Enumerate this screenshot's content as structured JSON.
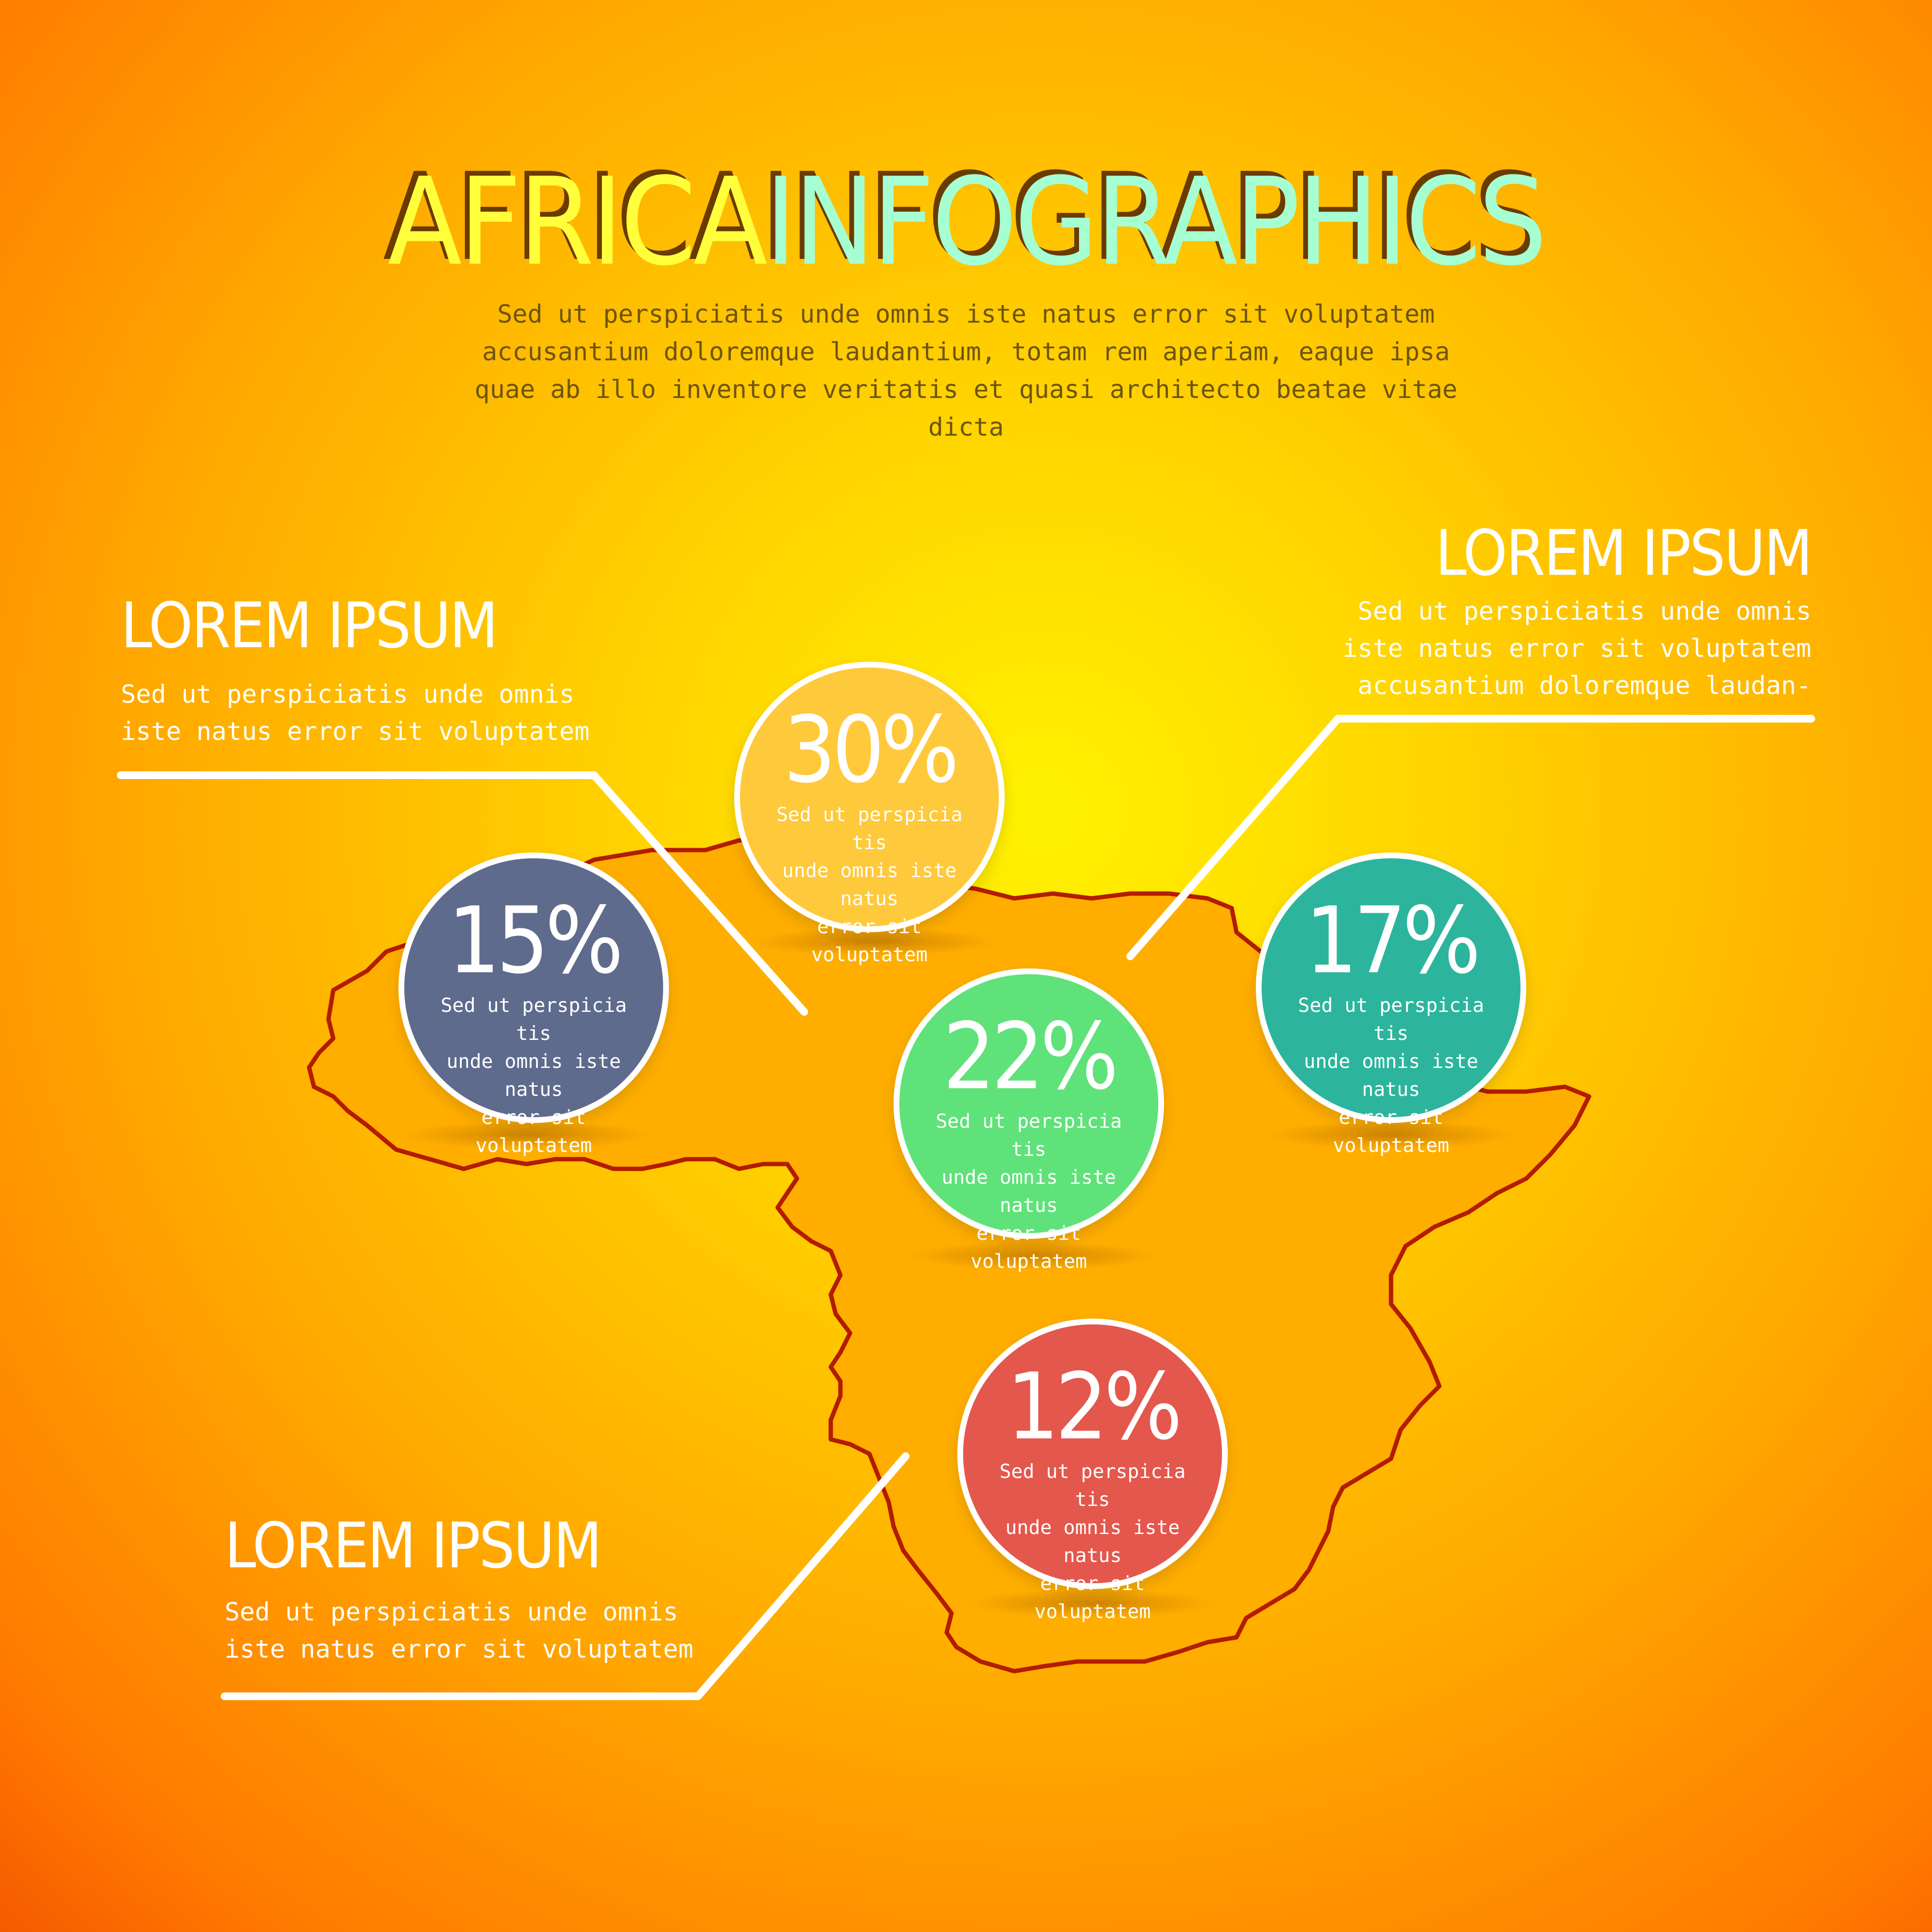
{
  "title": {
    "part1": "AFRICA",
    "part2": "INFOGRAPHICS"
  },
  "subtitle": "Sed ut perspiciatis unde omnis iste natus error sit voluptatem\naccusantium doloremque laudantium, totam rem aperiam, eaque ipsa\nquae ab illo inventore veritatis et quasi architecto beatae vitae dicta",
  "callouts": {
    "top_left": {
      "heading": "LOREM IPSUM",
      "text": "Sed ut perspiciatis unde omnis\niste natus error sit voluptatem"
    },
    "top_right": {
      "heading": "LOREM IPSUM",
      "text": "Sed ut perspiciatis unde omnis\niste natus error sit voluptatem\naccusantium doloremque laudan-"
    },
    "bottom_left": {
      "heading": "LOREM IPSUM",
      "text": "Sed ut perspiciatis unde omnis\niste natus error sit voluptatem"
    }
  },
  "bubbles": {
    "b30": {
      "value": "30%",
      "text": "Sed ut perspicia tis\nunde omnis iste natus\nerror sit\nvoluptatem",
      "color": "#ffc93c"
    },
    "b15": {
      "value": "15%",
      "text": "Sed ut perspicia tis\nunde omnis iste natus\nerror sit\nvoluptatem",
      "color": "#5f6b8c"
    },
    "b22": {
      "value": "22%",
      "text": "Sed ut perspicia tis\nunde omnis iste natus\nerror sit\nvoluptatem",
      "color": "#5fe27a"
    },
    "b17": {
      "value": "17%",
      "text": "Sed ut perspicia tis\nunde omnis iste natus\nerror sit\nvoluptatem",
      "color": "#2cb59c"
    },
    "b12": {
      "value": "12%",
      "text": "Sed ut perspicia tis\nunde omnis iste natus\nerror sit\nvoluptatem",
      "color": "#e4574d"
    }
  },
  "colors": {
    "map_outline": "#b31c00",
    "map_fill": "#ffae00",
    "lines": "#ffffff"
  }
}
